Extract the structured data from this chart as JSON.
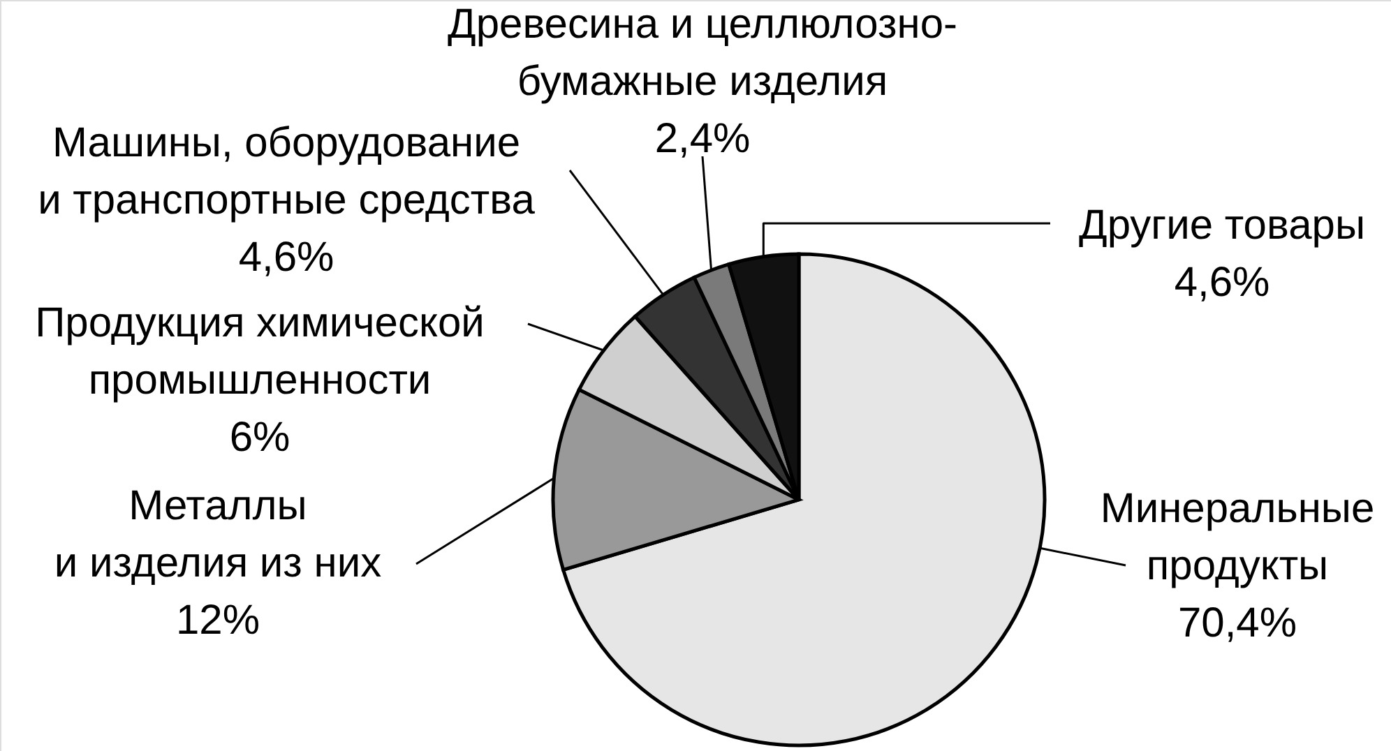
{
  "chart_data": {
    "type": "pie",
    "categories": [
      "Минеральные продукты",
      "Металлы и изделия из них",
      "Продукция химической промышленности",
      "Машины, оборудование и транспортные средства",
      "Древесина и целлюлозно-бумажные изделия",
      "Другие товары"
    ],
    "values": [
      70.4,
      12,
      6,
      4.6,
      2.4,
      4.6
    ],
    "colors": [
      "#e6e6e6",
      "#999999",
      "#cfcfcf",
      "#333333",
      "#7a7a7a",
      "#111111"
    ],
    "value_labels": [
      "70,4%",
      "12%",
      "6%",
      "4,6%",
      "2,4%",
      "4,6%"
    ]
  }
}
